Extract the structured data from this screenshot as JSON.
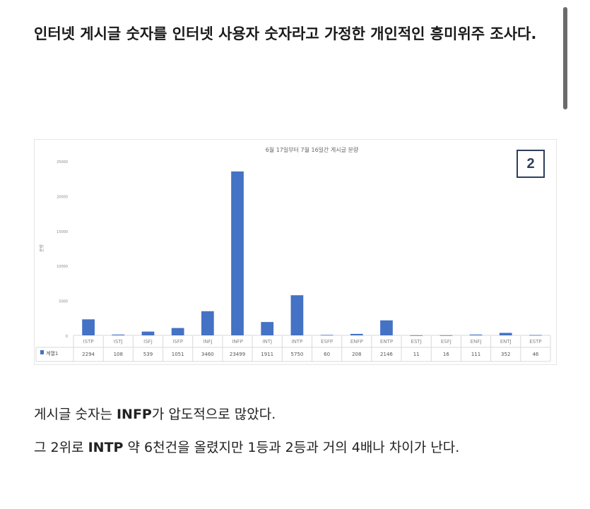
{
  "heading": "인터넷 게시글 숫자를 인터넷 사용자 숫자라고 가정한 개인적인 흥미위주 조사다.",
  "badge": "2",
  "paragraph1": {
    "pre": "게시글 숫자는 ",
    "bold": "INFP",
    "post": "가 압도적으로 많았다."
  },
  "paragraph2": {
    "pre": "그 2위로 ",
    "bold": "INTP",
    "post": " 약 6천건을 올렸지만 1등과 2등과 거의 4배나 차이가 난다."
  },
  "colors": {
    "bar": "#4472c4",
    "axis_text": "#888888",
    "grid": "#d9d9d9",
    "badge": "#2e3e5c"
  },
  "chart_data": {
    "type": "bar",
    "title": "6월 17일부터 7월 16일간 게시글 분량",
    "ylabel": "분량",
    "ylim": [
      0,
      25000
    ],
    "yticks": [
      0,
      5000,
      10000,
      15000,
      20000,
      25000
    ],
    "categories": [
      "ISTP",
      "ISTJ",
      "ISFJ",
      "ISFP",
      "INFJ",
      "INFP",
      "INTJ",
      "INTP",
      "ESFP",
      "ENFP",
      "ENTP",
      "ESTJ",
      "ESFJ",
      "ENFJ",
      "ENTJ",
      "ESTP"
    ],
    "series": [
      {
        "name": "계열1",
        "values": [
          2294,
          108,
          539,
          1051,
          3460,
          23499,
          1911,
          5750,
          60,
          208,
          2146,
          11,
          16,
          111,
          352,
          46
        ]
      }
    ],
    "data_table": true,
    "legend": "data-table"
  }
}
